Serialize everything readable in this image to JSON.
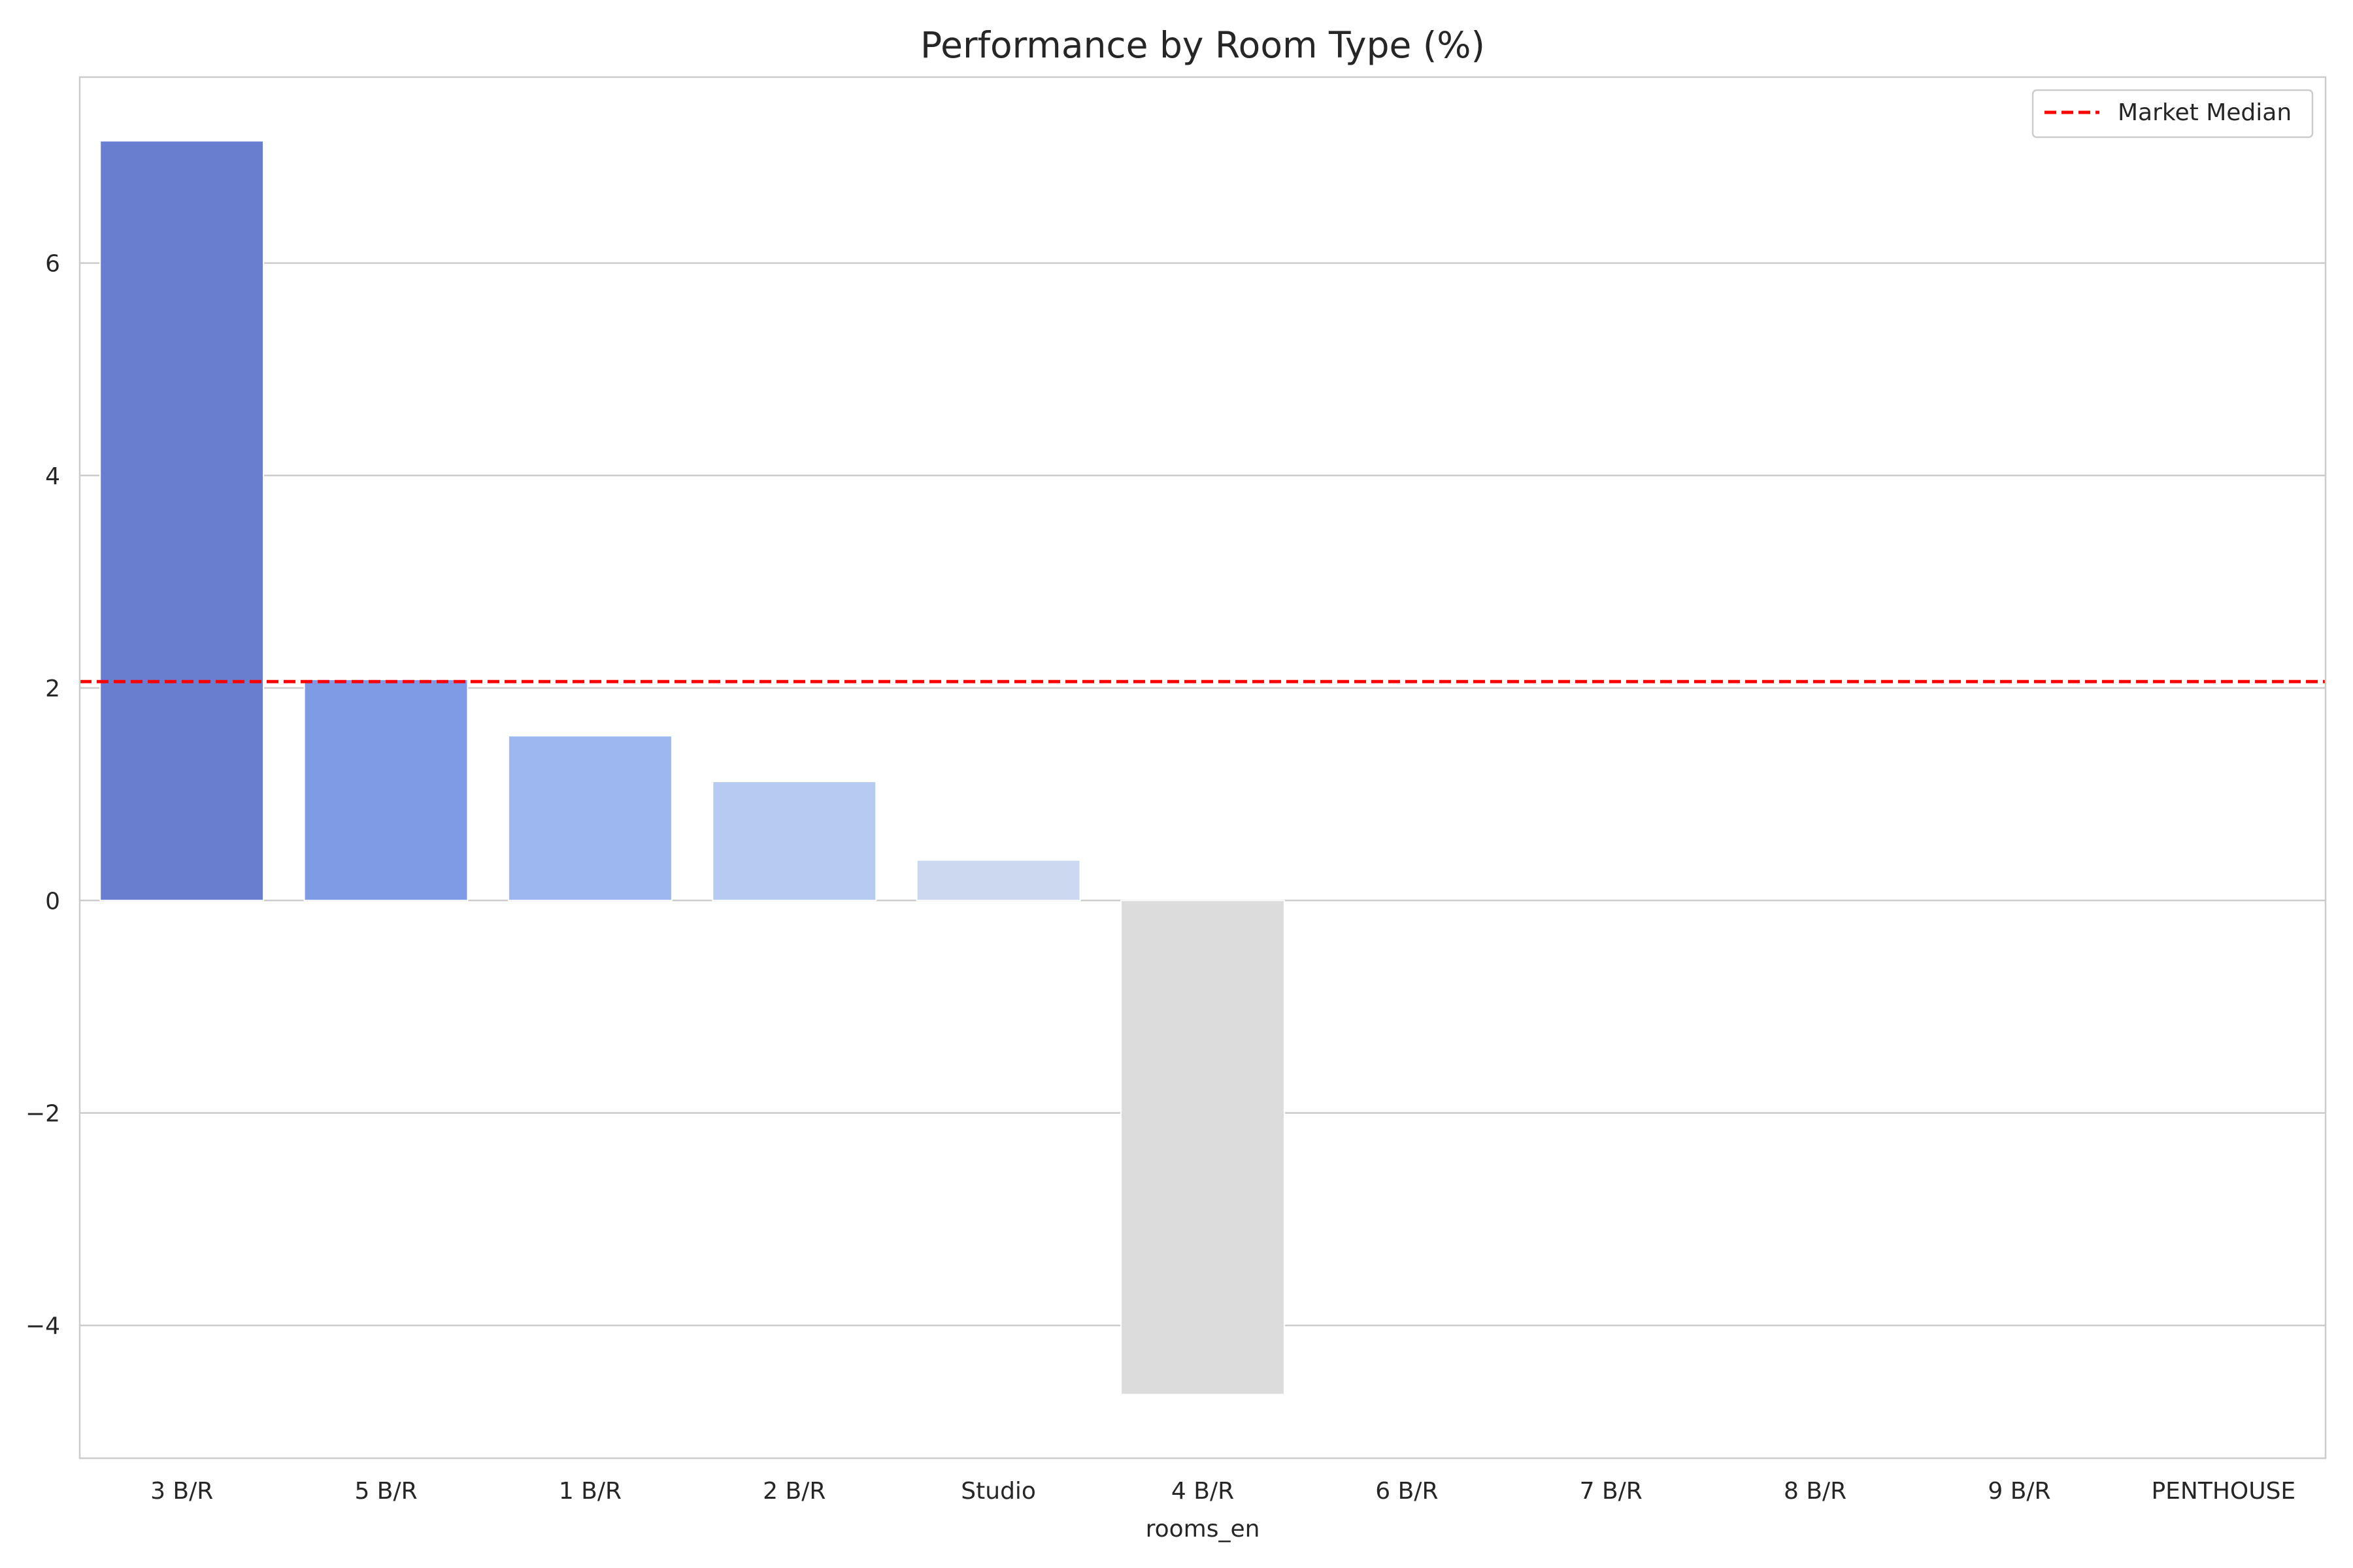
{
  "chart_data": {
    "type": "bar",
    "title": "Performance by Room Type (%)",
    "xlabel": "rooms_en",
    "ylabel": "",
    "categories": [
      "3 B/R",
      "5 B/R",
      "1 B/R",
      "2 B/R",
      "Studio",
      "4 B/R",
      "6 B/R",
      "7 B/R",
      "8 B/R",
      "9 B/R",
      "PENTHOUSE"
    ],
    "values": [
      7.15,
      2.08,
      1.55,
      1.12,
      0.38,
      -4.65,
      0,
      0,
      0,
      0,
      0
    ],
    "bar_colors": [
      "#6a7ed0",
      "#7f9be6",
      "#9db8f1",
      "#b5cbf2",
      "#cbd8f0",
      "#dcdcdc",
      "#dcdcdc",
      "#dcdcdc",
      "#dcdcdc",
      "#dcdcdc",
      "#dcdcdc"
    ],
    "ylim": [
      -5.25,
      7.75
    ],
    "yticks": [
      -4,
      -2,
      0,
      2,
      4,
      6
    ],
    "grid": "horizontal",
    "reference_line": {
      "label": "Market Median",
      "value": 2.06,
      "color": "#ff0000",
      "style": "dashed"
    },
    "legend_position": "top-right"
  }
}
